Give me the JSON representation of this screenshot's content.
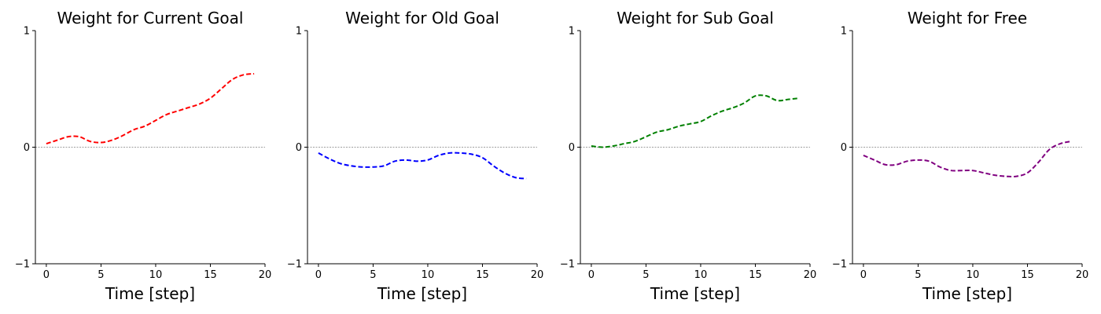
{
  "chart_data": [
    {
      "type": "line",
      "title": "Weight for Current Goal",
      "xlabel": "Time [step]",
      "ylabel": "",
      "xlim": [
        -1,
        20
      ],
      "ylim": [
        -1,
        1
      ],
      "xticks": [
        "0",
        "5",
        "10",
        "15",
        "20"
      ],
      "yticks": [
        "−1",
        "0",
        "1"
      ],
      "color": "#ff0000",
      "x": [
        0,
        1,
        2,
        3,
        4,
        5,
        6,
        7,
        8,
        9,
        10,
        11,
        12,
        13,
        14,
        15,
        16,
        17,
        18,
        19
      ],
      "y": [
        0.03,
        0.06,
        0.09,
        0.09,
        0.05,
        0.04,
        0.06,
        0.1,
        0.15,
        0.18,
        0.23,
        0.28,
        0.31,
        0.34,
        0.37,
        0.42,
        0.5,
        0.58,
        0.62,
        0.63
      ]
    },
    {
      "type": "line",
      "title": "Weight for Old Goal",
      "xlabel": "Time [step]",
      "ylabel": "",
      "xlim": [
        -1,
        20
      ],
      "ylim": [
        -1,
        1
      ],
      "xticks": [
        "0",
        "5",
        "10",
        "15",
        "20"
      ],
      "yticks": [
        "−1",
        "0",
        "1"
      ],
      "color": "#0000ff",
      "x": [
        0,
        1,
        2,
        3,
        4,
        5,
        6,
        7,
        8,
        9,
        10,
        11,
        12,
        13,
        14,
        15,
        16,
        17,
        18,
        19
      ],
      "y": [
        -0.05,
        -0.1,
        -0.14,
        -0.16,
        -0.17,
        -0.17,
        -0.16,
        -0.12,
        -0.11,
        -0.12,
        -0.11,
        -0.07,
        -0.05,
        -0.05,
        -0.06,
        -0.09,
        -0.16,
        -0.22,
        -0.26,
        -0.27
      ]
    },
    {
      "type": "line",
      "title": "Weight for Sub Goal",
      "xlabel": "Time [step]",
      "ylabel": "",
      "xlim": [
        -1,
        20
      ],
      "ylim": [
        -1,
        1
      ],
      "xticks": [
        "0",
        "5",
        "10",
        "15",
        "20"
      ],
      "yticks": [
        "−1",
        "0",
        "1"
      ],
      "color": "#008000",
      "x": [
        0,
        1,
        2,
        3,
        4,
        5,
        6,
        7,
        8,
        9,
        10,
        11,
        12,
        13,
        14,
        15,
        16,
        17,
        18,
        19
      ],
      "y": [
        0.01,
        0.0,
        0.01,
        0.03,
        0.05,
        0.09,
        0.13,
        0.15,
        0.18,
        0.2,
        0.22,
        0.27,
        0.31,
        0.34,
        0.38,
        0.44,
        0.44,
        0.4,
        0.41,
        0.42
      ]
    },
    {
      "type": "line",
      "title": "Weight for Free",
      "xlabel": "Time [step]",
      "ylabel": "",
      "xlim": [
        -1,
        20
      ],
      "ylim": [
        -1,
        1
      ],
      "xticks": [
        "0",
        "5",
        "10",
        "15",
        "20"
      ],
      "yticks": [
        "−1",
        "0",
        "1"
      ],
      "color": "#800080",
      "x": [
        0,
        1,
        2,
        3,
        4,
        5,
        6,
        7,
        8,
        9,
        10,
        11,
        12,
        13,
        14,
        15,
        16,
        17,
        18,
        19
      ],
      "y": [
        -0.07,
        -0.11,
        -0.15,
        -0.15,
        -0.12,
        -0.11,
        -0.12,
        -0.17,
        -0.2,
        -0.2,
        -0.2,
        -0.22,
        -0.24,
        -0.25,
        -0.25,
        -0.22,
        -0.13,
        -0.02,
        0.03,
        0.05
      ]
    }
  ]
}
